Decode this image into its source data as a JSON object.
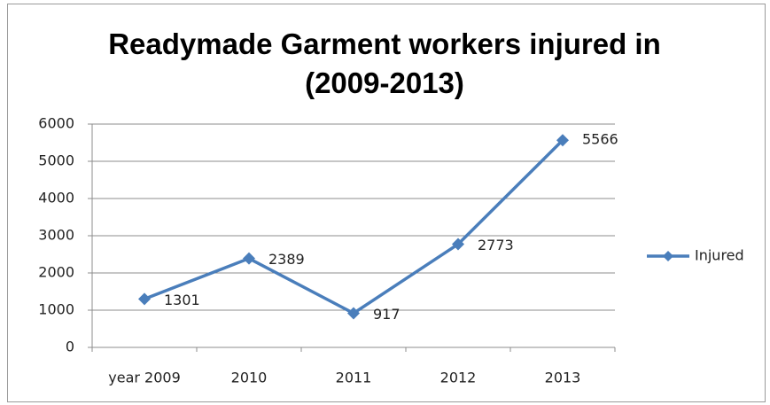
{
  "chart_data": {
    "type": "line",
    "title": "Readymade Garment workers injured in (2009-2013)",
    "categories": [
      "year 2009",
      "2010",
      "2011",
      "2012",
      "2013"
    ],
    "series": [
      {
        "name": "Injured",
        "color": "#4a7ebb",
        "values": [
          1301,
          2389,
          917,
          2773,
          5566
        ]
      }
    ],
    "ylim": [
      0,
      6000
    ],
    "yticks": [
      0,
      1000,
      2000,
      3000,
      4000,
      5000,
      6000
    ],
    "grid": true,
    "legend": "right"
  }
}
